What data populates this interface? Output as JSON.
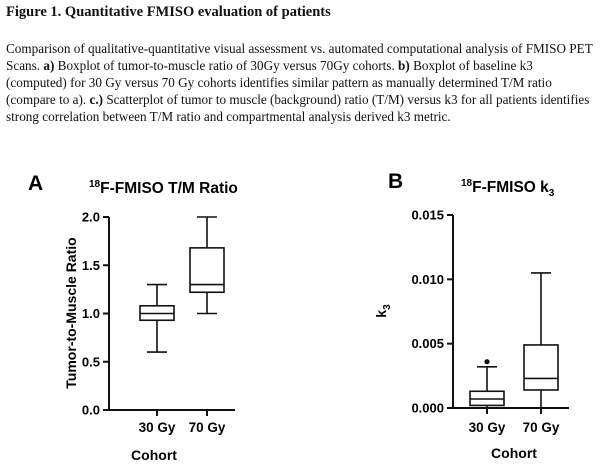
{
  "figure": {
    "title": "Figure 1. Quantitative FMISO evaluation of patients",
    "caption_parts": [
      {
        "text": "Comparison of qualitative-quantitative visual assessment vs. automated computational analysis of FMISO PET Scans. ",
        "bold": false
      },
      {
        "text": "a)",
        "bold": true
      },
      {
        "text": " Boxplot of tumor-to-muscle ratio of 30Gy versus 70Gy cohorts. ",
        "bold": false
      },
      {
        "text": "b)",
        "bold": true
      },
      {
        "text": " Boxplot of baseline k3 (computed) for 30 Gy versus 70 Gy cohorts identifies similar pattern as manually determined T/M ratio (compare to a). ",
        "bold": false
      },
      {
        "text": "c.)",
        "bold": true
      },
      {
        "text": " Scatterplot of tumor to muscle (background) ratio (T/M) versus k3 for all patients identifies strong correlation between T/M ratio and compartmental analysis derived k3 metric.",
        "bold": false
      }
    ]
  },
  "chart_data": [
    {
      "panel_label": "A",
      "type": "box",
      "title_sup": "18",
      "title_main": "F-FMISO T/M Ratio",
      "ylabel": "Tumor-to-Muscle Ratio",
      "xlabel": "",
      "ylim": [
        0,
        2
      ],
      "yticks": [
        "0.0",
        "0.5",
        "1.0",
        "1.5",
        "2.0"
      ],
      "ytick_values": [
        0,
        0.5,
        1.0,
        1.5,
        2.0
      ],
      "categories": [
        "30 Gy",
        "70 Gy"
      ],
      "boxes": [
        {
          "min": 0.6,
          "q1": 0.93,
          "median": 1.0,
          "q3": 1.08,
          "max": 1.3,
          "outliers": []
        },
        {
          "min": 1.0,
          "q1": 1.22,
          "median": 1.3,
          "q3": 1.68,
          "max": 2.0,
          "outliers": []
        }
      ]
    },
    {
      "panel_label": "B",
      "type": "box",
      "title_sup": "18",
      "title_main": "F-FMISO k",
      "title_sub": "3",
      "ylabel_main": "k",
      "ylabel_sub": "3",
      "xlabel": "Cohort",
      "ylim": [
        0,
        0.015
      ],
      "yticks": [
        "0.000",
        "0.005",
        "0.010",
        "0.015"
      ],
      "ytick_values": [
        0,
        0.005,
        0.01,
        0.015
      ],
      "categories": [
        "30 Gy",
        "70 Gy"
      ],
      "boxes": [
        {
          "min": 0.0,
          "q1": 0.0002,
          "median": 0.0007,
          "q3": 0.0013,
          "max": 0.0032,
          "outliers": [
            0.0036
          ]
        },
        {
          "min": 0.0,
          "q1": 0.0014,
          "median": 0.0023,
          "q3": 0.0049,
          "max": 0.0105,
          "outliers": []
        }
      ]
    }
  ],
  "panel_a_xlabel": "Cohort"
}
